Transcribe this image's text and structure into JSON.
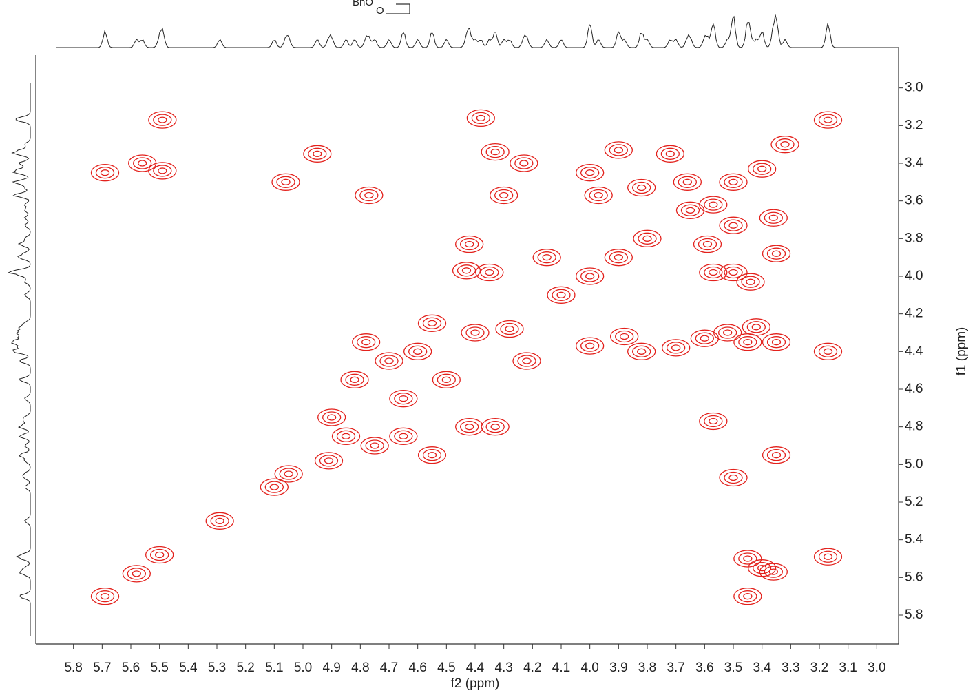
{
  "structure_labels": [
    "BnO",
    "O"
  ],
  "chart_data": {
    "type": "scatter",
    "xlabel": "f2 (ppm)",
    "ylabel": "f1 (ppm)",
    "xlim": [
      5.9,
      2.9
    ],
    "ylim": [
      2.8,
      5.95
    ],
    "xticks": [
      5.8,
      5.7,
      5.6,
      5.5,
      5.4,
      5.3,
      5.2,
      5.1,
      {
        "value": 5.0,
        "label": "5.0"
      },
      4.9,
      4.8,
      4.7,
      4.6,
      4.5,
      4.4,
      4.3,
      4.2,
      4.1,
      {
        "value": 4.0,
        "label": "4.0"
      },
      3.9,
      3.8,
      3.7,
      3.6,
      3.5,
      3.4,
      3.3,
      3.2,
      3.1,
      {
        "value": 3.0,
        "label": "3.0"
      }
    ],
    "yticks": [
      {
        "value": 3.0,
        "label": "3.0"
      },
      3.2,
      3.4,
      3.6,
      3.8,
      {
        "value": 4.0,
        "label": "4.0"
      },
      4.2,
      4.4,
      4.6,
      4.8,
      {
        "value": 5.0,
        "label": "5.0"
      },
      5.2,
      5.4,
      5.6,
      5.8
    ],
    "color": "#e3211c",
    "x": [
      5.69,
      5.49,
      5.49,
      5.56,
      5.06,
      4.95,
      4.77,
      4.38,
      4.33,
      4.23,
      4.3,
      4.0,
      3.97,
      3.9,
      3.82,
      3.72,
      3.66,
      3.57,
      3.5,
      3.4,
      3.32,
      3.36,
      3.5,
      3.59,
      3.35,
      3.57,
      3.5,
      3.44,
      3.17,
      4.42,
      4.43,
      4.35,
      4.15,
      4.0,
      3.9,
      4.0,
      3.88,
      3.82,
      3.7,
      3.6,
      3.52,
      3.45,
      3.42,
      3.35,
      3.17,
      3.57,
      3.35,
      3.5,
      3.45,
      3.4,
      3.36,
      3.45,
      3.17,
      5.29,
      5.69,
      5.58,
      5.5,
      5.1,
      5.05,
      4.91,
      4.9,
      4.78,
      4.82,
      4.75,
      4.65,
      4.55,
      4.42,
      4.33,
      4.55,
      4.4,
      4.22,
      4.5,
      4.65,
      4.7,
      4.6,
      4.85,
      4.28,
      4.1,
      3.8,
      3.65
    ],
    "y": [
      3.45,
      3.17,
      3.44,
      3.4,
      3.5,
      3.35,
      3.57,
      3.16,
      3.34,
      3.4,
      3.57,
      3.45,
      3.57,
      3.33,
      3.53,
      3.35,
      3.5,
      3.62,
      3.5,
      3.43,
      3.3,
      3.69,
      3.73,
      3.83,
      3.88,
      3.98,
      3.98,
      4.03,
      3.17,
      3.83,
      3.97,
      3.98,
      3.9,
      4.0,
      3.9,
      4.37,
      4.32,
      4.4,
      4.38,
      4.33,
      4.3,
      4.35,
      4.27,
      4.35,
      4.4,
      4.77,
      4.95,
      5.07,
      5.5,
      5.55,
      5.57,
      5.7,
      5.49,
      5.3,
      5.7,
      5.58,
      5.48,
      5.12,
      5.05,
      4.98,
      4.75,
      4.35,
      4.55,
      4.9,
      4.85,
      4.95,
      4.8,
      4.8,
      4.25,
      4.3,
      4.45,
      4.55,
      4.65,
      4.45,
      4.4,
      4.85,
      4.28,
      4.1,
      3.8,
      3.65
    ]
  }
}
